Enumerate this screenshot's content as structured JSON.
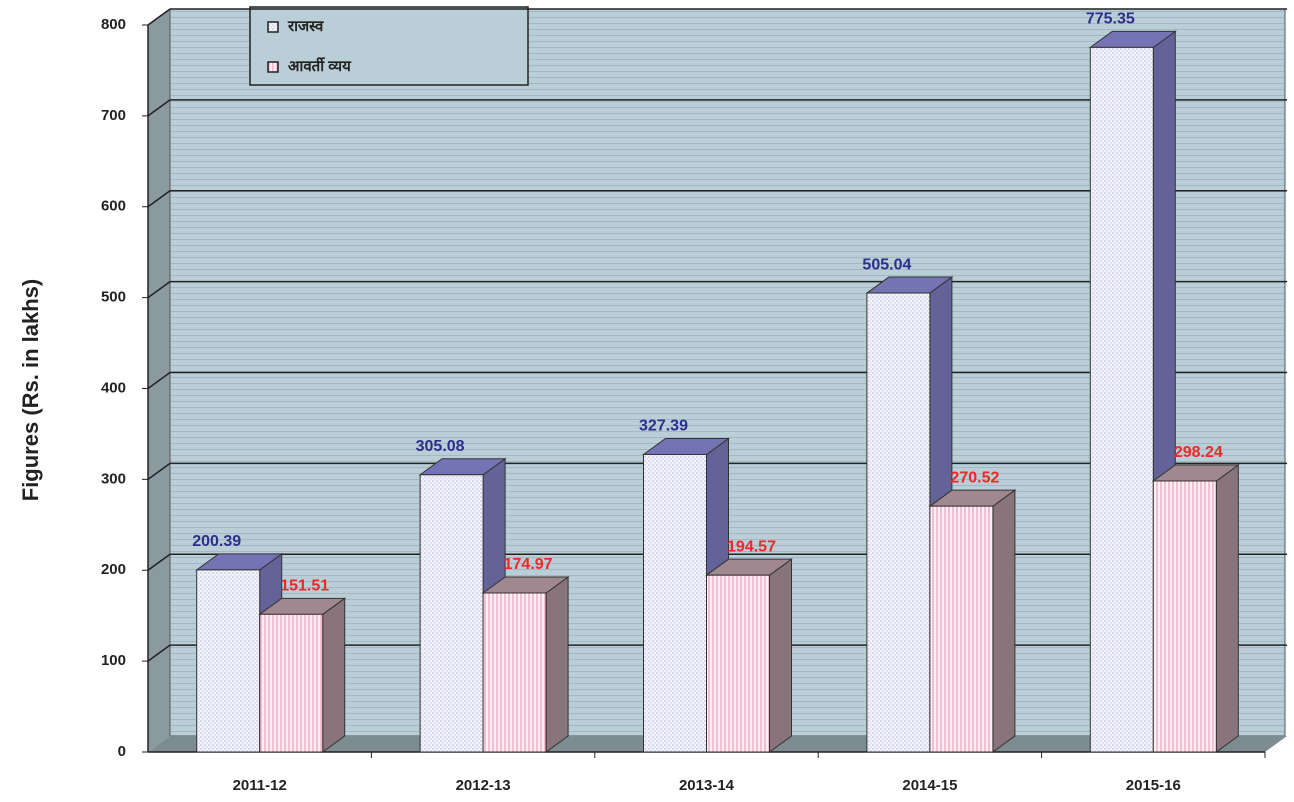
{
  "chart_data": {
    "type": "bar3d",
    "y_label": "Figures (Rs. in lakhs)",
    "categories": [
      "2011-12",
      "2012-13",
      "2013-14",
      "2014-15",
      "2015-16"
    ],
    "series": [
      {
        "name": "राजस्व",
        "color": "#7474b4",
        "values": [
          200.39,
          305.08,
          327.39,
          505.04,
          775.35
        ]
      },
      {
        "name": "आवर्ती व्यय",
        "color": "#a08890",
        "values": [
          151.51,
          174.97,
          194.57,
          270.52,
          298.24
        ]
      }
    ],
    "ylim": [
      0,
      800
    ],
    "yticks": [
      0,
      100,
      200,
      300,
      400,
      500,
      600,
      700,
      800
    ],
    "grid": true,
    "legend": "top-left"
  }
}
